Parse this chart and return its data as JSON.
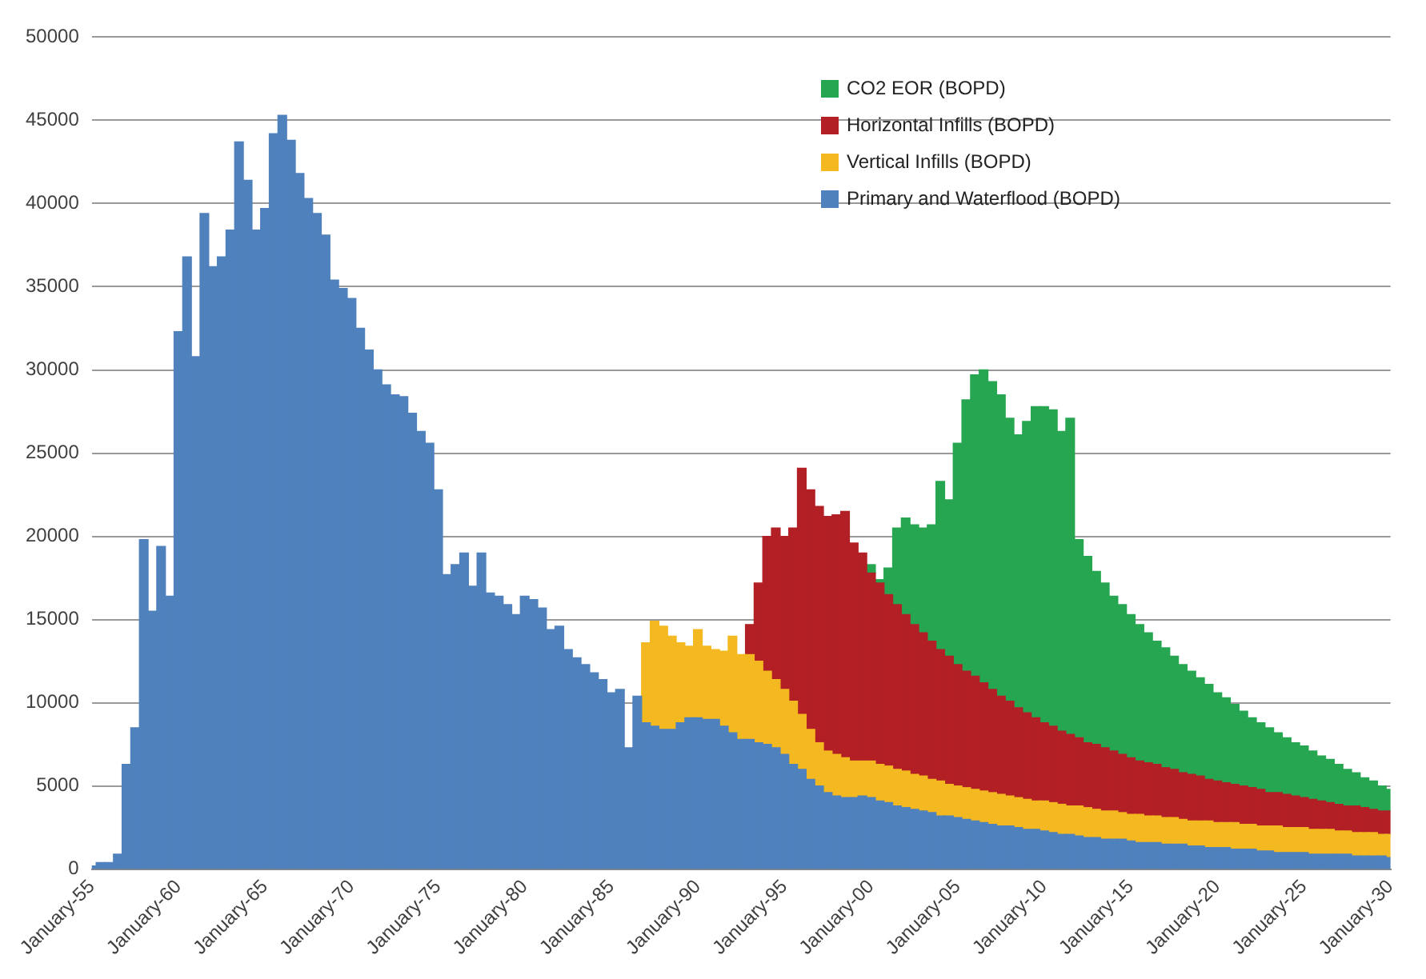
{
  "chart_data": {
    "type": "bar",
    "stacked": true,
    "ylim": [
      0,
      50000
    ],
    "yticks": [
      0,
      5000,
      10000,
      15000,
      20000,
      25000,
      30000,
      35000,
      40000,
      45000,
      50000
    ],
    "grid": "y",
    "legend": "top right",
    "categories": [
      "January-55",
      null,
      null,
      null,
      null,
      null,
      null,
      null,
      null,
      null,
      "January-60",
      null,
      null,
      null,
      null,
      null,
      null,
      null,
      null,
      null,
      "January-65",
      null,
      null,
      null,
      null,
      null,
      null,
      null,
      null,
      null,
      "January-70",
      null,
      null,
      null,
      null,
      null,
      null,
      null,
      null,
      null,
      "January-75",
      null,
      null,
      null,
      null,
      null,
      null,
      null,
      null,
      null,
      "January-80",
      null,
      null,
      null,
      null,
      null,
      null,
      null,
      null,
      null,
      "January-85",
      null,
      null,
      null,
      null,
      null,
      null,
      null,
      null,
      null,
      "January-90",
      null,
      null,
      null,
      null,
      null,
      null,
      null,
      null,
      null,
      "January-95",
      null,
      null,
      null,
      null,
      null,
      null,
      null,
      null,
      null,
      "January-00",
      null,
      null,
      null,
      null,
      null,
      null,
      null,
      null,
      null,
      "January-05",
      null,
      null,
      null,
      null,
      null,
      null,
      null,
      null,
      null,
      "January-10",
      null,
      null,
      null,
      null,
      null,
      null,
      null,
      null,
      null,
      "January-15",
      null,
      null,
      null,
      null,
      null,
      null,
      null,
      null,
      null,
      "January-20",
      null,
      null,
      null,
      null,
      null,
      null,
      null,
      null,
      null,
      "January-25",
      null,
      null,
      null,
      null,
      null,
      null,
      null,
      null,
      null,
      "January-30"
    ],
    "series": [
      {
        "name": "Primary and Waterflood (BOPD)",
        "color": "#4f81bd",
        "values": [
          200,
          400,
          400,
          900,
          6300,
          8500,
          19800,
          15500,
          19400,
          16400,
          32300,
          36800,
          30800,
          39400,
          36200,
          36800,
          38400,
          43700,
          41400,
          38400,
          39700,
          44200,
          45300,
          43800,
          41800,
          40300,
          39400,
          38100,
          35400,
          34900,
          34300,
          32500,
          31200,
          30000,
          29100,
          28500,
          28400,
          27400,
          26300,
          25600,
          22800,
          17700,
          18300,
          19000,
          17000,
          19000,
          16600,
          16400,
          15900,
          15300,
          16400,
          16200,
          15700,
          14400,
          14600,
          13200,
          12700,
          12300,
          11800,
          11400,
          10600,
          10800,
          7300,
          10400,
          8800,
          8600,
          8400,
          8400,
          8800,
          9100,
          9100,
          9000,
          9000,
          8600,
          8200,
          7800,
          7800,
          7600,
          7500,
          7300,
          6900,
          6300,
          6000,
          5400,
          5000,
          4600,
          4400,
          4300,
          4300,
          4400,
          4300,
          4100,
          4000,
          3800,
          3700,
          3600,
          3500,
          3400,
          3200,
          3200,
          3100,
          3000,
          2900,
          2800,
          2700,
          2600,
          2600,
          2500,
          2400,
          2400,
          2300,
          2200,
          2100,
          2100,
          2000,
          1900,
          1900,
          1800,
          1800,
          1800,
          1700,
          1600,
          1600,
          1600,
          1500,
          1500,
          1500,
          1400,
          1400,
          1300,
          1300,
          1300,
          1200,
          1200,
          1200,
          1100,
          1100,
          1000,
          1000,
          1000,
          1000,
          900,
          900,
          900,
          900,
          900,
          800,
          800,
          800,
          800,
          700
        ]
      },
      {
        "name": "Vertical Infills (BOPD)",
        "color": "#f4b920",
        "values": [
          null,
          null,
          null,
          null,
          null,
          null,
          null,
          null,
          null,
          null,
          null,
          null,
          null,
          null,
          null,
          null,
          null,
          null,
          null,
          null,
          null,
          null,
          null,
          null,
          null,
          null,
          null,
          null,
          null,
          null,
          null,
          null,
          null,
          null,
          null,
          null,
          null,
          null,
          null,
          null,
          null,
          null,
          null,
          null,
          null,
          null,
          null,
          null,
          null,
          null,
          null,
          null,
          null,
          null,
          null,
          null,
          null,
          null,
          null,
          null,
          null,
          null,
          null,
          null,
          4800,
          6300,
          6200,
          5600,
          4800,
          4300,
          5300,
          4400,
          4200,
          4500,
          5800,
          5100,
          5100,
          4900,
          4400,
          4100,
          3900,
          3800,
          3300,
          3000,
          2600,
          2500,
          2500,
          2400,
          2200,
          2100,
          2200,
          2200,
          2200,
          2200,
          2200,
          2100,
          2100,
          2000,
          2100,
          1900,
          1900,
          1900,
          1900,
          1900,
          1900,
          1900,
          1800,
          1800,
          1800,
          1700,
          1800,
          1800,
          1800,
          1700,
          1800,
          1800,
          1700,
          1700,
          1700,
          1600,
          1600,
          1700,
          1600,
          1600,
          1600,
          1600,
          1500,
          1500,
          1500,
          1600,
          1500,
          1500,
          1600,
          1500,
          1500,
          1500,
          1500,
          1600,
          1500,
          1500,
          1500,
          1500,
          1500,
          1500,
          1400,
          1400,
          1400,
          1400,
          1400,
          1300,
          1400
        ]
      },
      {
        "name": "Horizontal Infills (BOPD)",
        "color": "#b21f24",
        "values": [
          null,
          null,
          null,
          null,
          null,
          null,
          null,
          null,
          null,
          null,
          null,
          null,
          null,
          null,
          null,
          null,
          null,
          null,
          null,
          null,
          null,
          null,
          null,
          null,
          null,
          null,
          null,
          null,
          null,
          null,
          null,
          null,
          null,
          null,
          null,
          null,
          null,
          null,
          null,
          null,
          null,
          null,
          null,
          null,
          null,
          null,
          null,
          null,
          null,
          null,
          null,
          null,
          null,
          null,
          null,
          null,
          null,
          null,
          null,
          null,
          null,
          null,
          null,
          null,
          null,
          null,
          null,
          null,
          null,
          null,
          null,
          null,
          null,
          null,
          null,
          null,
          1800,
          4700,
          8100,
          9100,
          9200,
          10400,
          14800,
          14400,
          14200,
          14100,
          14400,
          14800,
          13100,
          12500,
          11300,
          10900,
          10300,
          9900,
          9400,
          9000,
          8600,
          8300,
          7900,
          7700,
          7300,
          7000,
          6800,
          6500,
          6200,
          5900,
          5700,
          5400,
          5200,
          5000,
          4700,
          4600,
          4400,
          4300,
          4100,
          3900,
          3900,
          3800,
          3600,
          3500,
          3400,
          3200,
          3200,
          3100,
          3000,
          2900,
          2800,
          2800,
          2700,
          2500,
          2500,
          2400,
          2300,
          2300,
          2200,
          2200,
          2000,
          2000,
          2000,
          1900,
          1800,
          1800,
          1700,
          1600,
          1600,
          1500,
          1600,
          1500,
          1400,
          1400,
          1400
        ]
      },
      {
        "name": "CO2 EOR (BOPD)",
        "color": "#26a650",
        "values": [
          null,
          null,
          null,
          null,
          null,
          null,
          null,
          null,
          null,
          null,
          null,
          null,
          null,
          null,
          null,
          null,
          null,
          null,
          null,
          null,
          null,
          null,
          null,
          null,
          null,
          null,
          null,
          null,
          null,
          null,
          null,
          null,
          null,
          null,
          null,
          null,
          null,
          null,
          null,
          null,
          null,
          null,
          null,
          null,
          null,
          null,
          null,
          null,
          null,
          null,
          null,
          null,
          null,
          null,
          null,
          null,
          null,
          null,
          null,
          null,
          null,
          null,
          null,
          null,
          null,
          null,
          null,
          null,
          null,
          null,
          null,
          null,
          null,
          null,
          null,
          null,
          null,
          null,
          null,
          null,
          null,
          null,
          null,
          null,
          null,
          null,
          null,
          null,
          null,
          null,
          500,
          200,
          1600,
          4600,
          5800,
          6000,
          6300,
          7000,
          10100,
          9400,
          13300,
          16300,
          18100,
          18800,
          18500,
          18100,
          17000,
          16400,
          17500,
          18700,
          19000,
          19000,
          18000,
          19000,
          11900,
          11200,
          10400,
          9900,
          9300,
          9000,
          8600,
          8200,
          7800,
          7400,
          7200,
          6800,
          6500,
          6200,
          5900,
          5700,
          5300,
          5100,
          4800,
          4500,
          4200,
          4000,
          3900,
          3600,
          3400,
          3200,
          3100,
          2900,
          2700,
          2600,
          2400,
          2200,
          2000,
          1800,
          1700,
          1500,
          1300
        ]
      }
    ]
  }
}
